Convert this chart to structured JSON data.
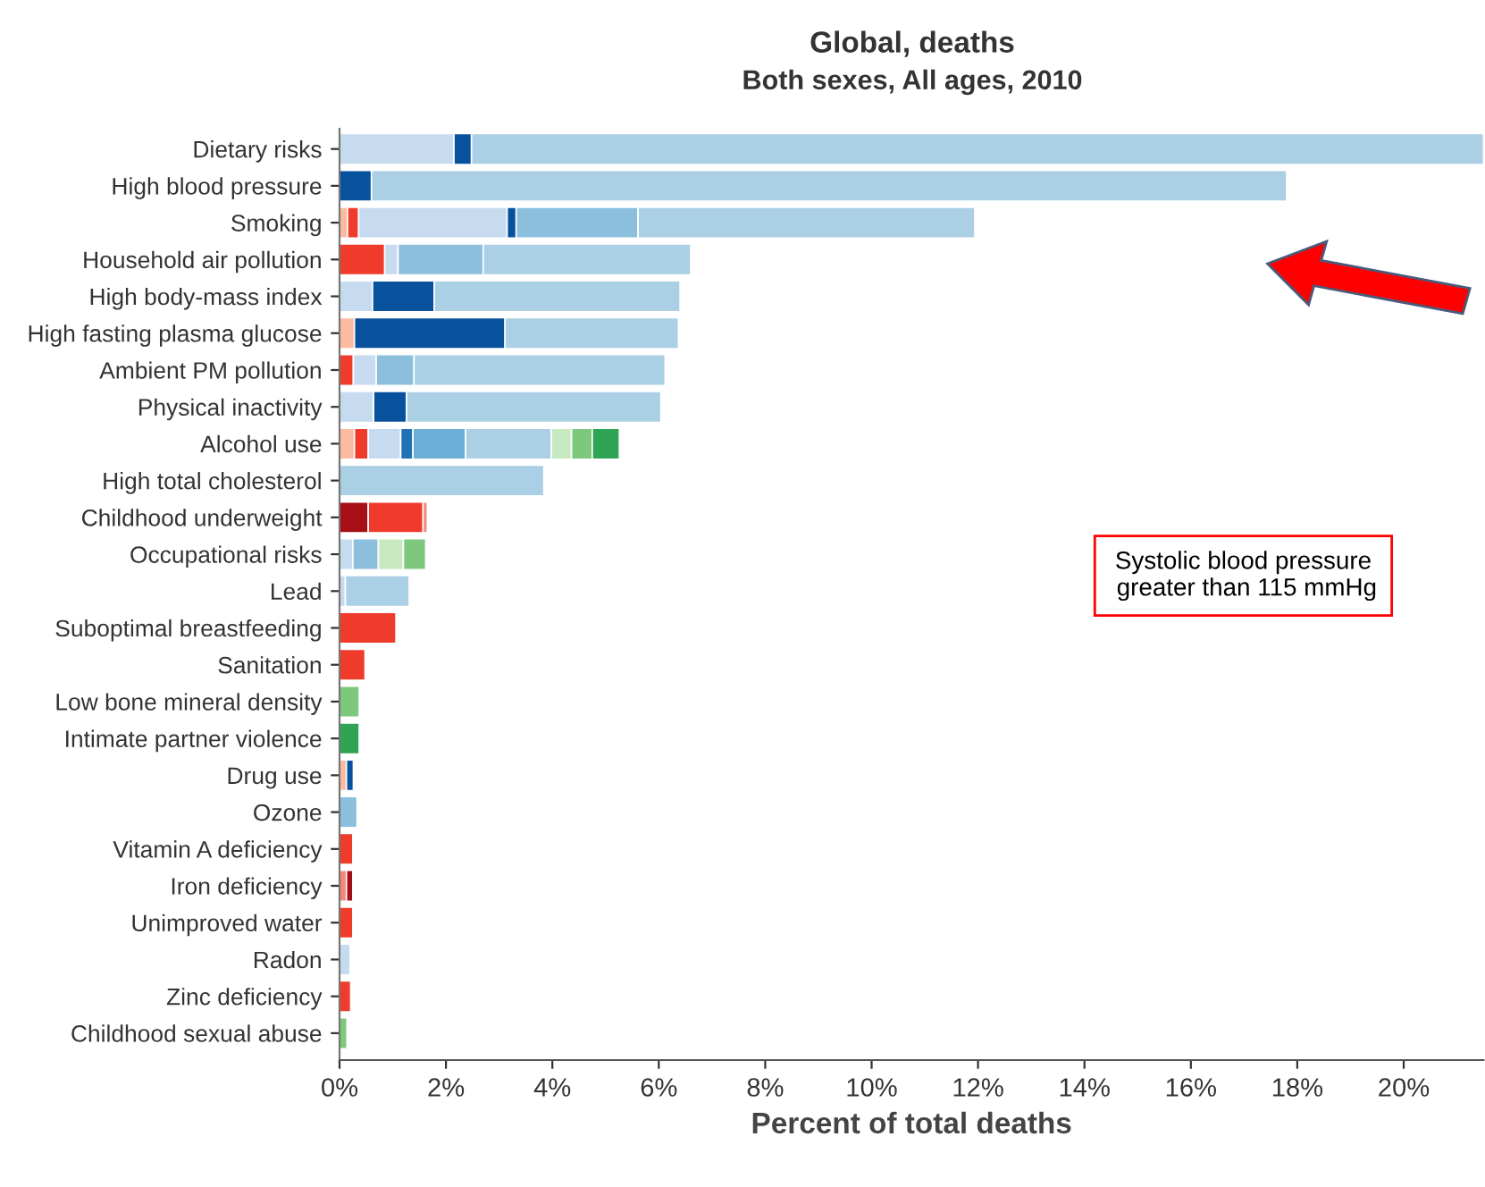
{
  "chart_data": {
    "type": "bar",
    "orientation": "horizontal",
    "stacked": true,
    "title": "Global, deaths",
    "subtitle": "Both sexes, All ages, 2010",
    "xlabel": "Percent of total deaths",
    "categories": [
      "Dietary risks",
      "High blood pressure",
      "Smoking",
      "Household air pollution",
      "High body-mass index",
      "High fasting plasma glucose",
      "Ambient PM pollution",
      "Physical inactivity",
      "Alcohol use",
      "High total cholesterol",
      "Childhood underweight",
      "Occupational risks",
      "Lead",
      "Suboptimal breastfeeding",
      "Sanitation",
      "Low bone mineral density",
      "Intimate partner violence",
      "Drug use",
      "Ozone",
      "Vitamin A deficiency",
      "Iron deficiency",
      "Unimproved water",
      "Radon",
      "Zinc deficiency",
      "Childhood sexual abuse"
    ],
    "series": [
      {
        "values": [
          2.15,
          0.6,
          0.15,
          0.85,
          0.62,
          0.28,
          0.26,
          0.64,
          0.28,
          3.84,
          0.54,
          0.25,
          0.11,
          1.06,
          0.48,
          0.37,
          0.37,
          0.13,
          0.33,
          0.25,
          0.13,
          0.25,
          0.2,
          0.21,
          0.14
        ],
        "colors": [
          "#c6dbef",
          "#08519c",
          "#fcbba1",
          "#ef3b2c",
          "#c6dbef",
          "#fcbba1",
          "#ef3b2c",
          "#c6dbef",
          "#fcbba1",
          "#abcfe5",
          "#a50f15",
          "#c6dbef",
          "#c6dbef",
          "#ef3b2c",
          "#ef3b2c",
          "#7ec87e",
          "#31a354",
          "#fcbba1",
          "#8cbfdd",
          "#ef3b2c",
          "#f4877a",
          "#ef3b2c",
          "#c6dbef",
          "#ef3b2c",
          "#7ec87e"
        ]
      },
      {
        "values": [
          0.33,
          17.2,
          0.21,
          0.25,
          1.16,
          2.83,
          0.43,
          0.62,
          0.26,
          null,
          1.03,
          0.48,
          1.2,
          null,
          null,
          null,
          null,
          0.13,
          null,
          null,
          0.12,
          null,
          null,
          null,
          null
        ],
        "colors": [
          "#08519c",
          "#abcfe5",
          "#ef3b2c",
          "#c6dbef",
          "#08519c",
          "#08519c",
          "#c6dbef",
          "#08519c",
          "#ef3b2c",
          null,
          "#ef3b2c",
          "#8cbfdd",
          "#abcfe5",
          null,
          null,
          null,
          null,
          "#08519c",
          null,
          null,
          "#a50f15",
          null,
          null,
          null,
          null
        ]
      },
      {
        "values": [
          19.02,
          null,
          2.79,
          1.6,
          4.62,
          3.26,
          0.71,
          4.78,
          0.61,
          null,
          0.08,
          0.47,
          null,
          null,
          null,
          null,
          null,
          null,
          null,
          null,
          null,
          null,
          null,
          null,
          null
        ],
        "colors": [
          "#abcfe5",
          null,
          "#c6dbef",
          "#8cbfdd",
          "#abcfe5",
          "#abcfe5",
          "#8cbfdd",
          "#abcfe5",
          "#c6dbef",
          null,
          "#f4877a",
          "#c7e9c0",
          null,
          null,
          null,
          null,
          null,
          null,
          null,
          null,
          null,
          null,
          null,
          null,
          null
        ]
      },
      {
        "values": [
          null,
          null,
          0.17,
          3.9,
          null,
          null,
          4.72,
          null,
          0.23,
          null,
          null,
          0.42,
          null,
          null,
          null,
          null,
          null,
          null,
          null,
          null,
          null,
          null,
          null,
          null,
          null
        ],
        "colors": [
          null,
          null,
          "#08519c",
          "#abcfe5",
          null,
          null,
          "#abcfe5",
          null,
          "#2171b5",
          null,
          null,
          "#7ec87e",
          null,
          null,
          null,
          null,
          null,
          null,
          null,
          null,
          null,
          null,
          null,
          null,
          null
        ]
      },
      {
        "values": [
          null,
          null,
          2.29,
          null,
          null,
          null,
          null,
          null,
          0.99,
          null,
          null,
          null,
          null,
          null,
          null,
          null,
          null,
          null,
          null,
          null,
          null,
          null,
          null,
          null,
          null
        ],
        "colors": [
          null,
          null,
          "#8cbfdd",
          null,
          null,
          null,
          null,
          null,
          "#6baed6",
          null,
          null,
          null,
          null,
          null,
          null,
          null,
          null,
          null,
          null,
          null,
          null,
          null,
          null,
          null,
          null
        ]
      },
      {
        "values": [
          null,
          null,
          6.33,
          null,
          null,
          null,
          null,
          null,
          1.61,
          null,
          null,
          null,
          null,
          null,
          null,
          null,
          null,
          null,
          null,
          null,
          null,
          null,
          null,
          null,
          null
        ],
        "colors": [
          null,
          null,
          "#abcfe5",
          null,
          null,
          null,
          null,
          null,
          "#abcfe5",
          null,
          null,
          null,
          null,
          null,
          null,
          null,
          null,
          null,
          null,
          null,
          null,
          null,
          null,
          null,
          null
        ]
      },
      {
        "values": [
          null,
          null,
          null,
          null,
          null,
          null,
          null,
          null,
          0.38,
          null,
          null,
          null,
          null,
          null,
          null,
          null,
          null,
          null,
          null,
          null,
          null,
          null,
          null,
          null,
          null
        ],
        "colors": [
          null,
          null,
          null,
          null,
          null,
          null,
          null,
          null,
          "#c7e9c0",
          null,
          null,
          null,
          null,
          null,
          null,
          null,
          null,
          null,
          null,
          null,
          null,
          null,
          null,
          null,
          null
        ]
      },
      {
        "values": [
          null,
          null,
          null,
          null,
          null,
          null,
          null,
          null,
          0.39,
          null,
          null,
          null,
          null,
          null,
          null,
          null,
          null,
          null,
          null,
          null,
          null,
          null,
          null,
          null,
          null
        ],
        "colors": [
          null,
          null,
          null,
          null,
          null,
          null,
          null,
          null,
          "#7ec87e",
          null,
          null,
          null,
          null,
          null,
          null,
          null,
          null,
          null,
          null,
          null,
          null,
          null,
          null,
          null,
          null
        ]
      },
      {
        "values": [
          null,
          null,
          null,
          null,
          null,
          null,
          null,
          null,
          0.51,
          null,
          null,
          null,
          null,
          null,
          null,
          null,
          null,
          null,
          null,
          null,
          null,
          null,
          null,
          null,
          null
        ],
        "colors": [
          null,
          null,
          null,
          null,
          null,
          null,
          null,
          null,
          "#31a354",
          null,
          null,
          null,
          null,
          null,
          null,
          null,
          null,
          null,
          null,
          null,
          null,
          null,
          null,
          null,
          null
        ]
      }
    ],
    "xlim": [
      0,
      21.5
    ],
    "xticks": [
      {
        "value": 0,
        "label": "0%"
      },
      {
        "value": 2,
        "label": "2%"
      },
      {
        "value": 4,
        "label": "4%"
      },
      {
        "value": 6,
        "label": "6%"
      },
      {
        "value": 8,
        "label": "8%"
      },
      {
        "value": 10,
        "label": "10%"
      },
      {
        "value": 12,
        "label": "12%"
      },
      {
        "value": 14,
        "label": "14%"
      },
      {
        "value": 16,
        "label": "16%"
      },
      {
        "value": 18,
        "label": "18%"
      },
      {
        "value": 20,
        "label": "20%"
      }
    ],
    "annotations": [
      "Systolic blood pressure\n greater than 115 mmHg"
    ],
    "grid": false,
    "legend": false
  }
}
